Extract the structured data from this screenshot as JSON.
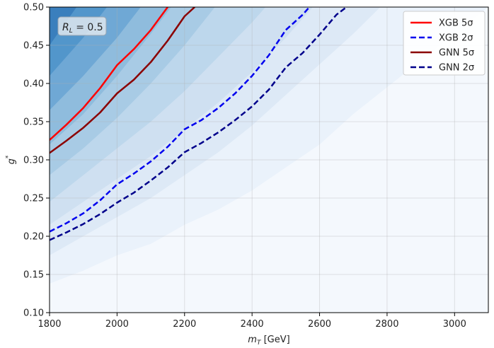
{
  "chart_data": {
    "type": "line",
    "title": "",
    "xlabel": "m_T [GeV]",
    "ylabel": "g*",
    "xlim": [
      1800,
      3100
    ],
    "ylim": [
      0.1,
      0.5
    ],
    "xticks": [
      1800,
      2000,
      2200,
      2400,
      2600,
      2800,
      3000
    ],
    "yticks": [
      0.1,
      0.15,
      0.2,
      0.25,
      0.3,
      0.35,
      0.4,
      0.45,
      0.5
    ],
    "xtick_labels": [
      "1800",
      "2000",
      "2200",
      "2400",
      "2600",
      "2800",
      "3000"
    ],
    "ytick_labels": [
      "0.10",
      "0.15",
      "0.20",
      "0.25",
      "0.30",
      "0.35",
      "0.40",
      "0.45",
      "0.50"
    ],
    "grid": true,
    "legend_position": "top-right",
    "annotation": {
      "text": "R_L = 0.5",
      "position": "top-left"
    },
    "background": {
      "type": "filled-contour",
      "colormap": "Blues",
      "levels": [
        {
          "points": [
            [
              1800,
              0.138
            ],
            [
              1900,
              0.155
            ],
            [
              2000,
              0.175
            ],
            [
              2100,
              0.19
            ],
            [
              2200,
              0.215
            ],
            [
              2300,
              0.235
            ],
            [
              2400,
              0.26
            ],
            [
              2500,
              0.29
            ],
            [
              2600,
              0.32
            ],
            [
              2700,
              0.36
            ],
            [
              2800,
              0.395
            ],
            [
              2900,
              0.43
            ],
            [
              3000,
              0.465
            ],
            [
              3100,
              0.5
            ]
          ],
          "color": "#eaf2fb"
        },
        {
          "points": [
            [
              1800,
              0.175
            ],
            [
              1900,
              0.2
            ],
            [
              2000,
              0.225
            ],
            [
              2100,
              0.25
            ],
            [
              2200,
              0.28
            ],
            [
              2300,
              0.31
            ],
            [
              2400,
              0.345
            ],
            [
              2500,
              0.385
            ],
            [
              2600,
              0.425
            ],
            [
              2700,
              0.465
            ],
            [
              2780,
              0.5
            ]
          ],
          "color": "#dde9f6"
        },
        {
          "points": [
            [
              1800,
              0.215
            ],
            [
              1900,
              0.245
            ],
            [
              2000,
              0.275
            ],
            [
              2100,
              0.305
            ],
            [
              2200,
              0.34
            ],
            [
              2300,
              0.375
            ],
            [
              2400,
              0.415
            ],
            [
              2500,
              0.46
            ],
            [
              2580,
              0.5
            ]
          ],
          "color": "#cfe0f1"
        },
        {
          "points": [
            [
              1800,
              0.245
            ],
            [
              1900,
              0.28
            ],
            [
              2000,
              0.315
            ],
            [
              2100,
              0.35
            ],
            [
              2200,
              0.39
            ],
            [
              2300,
              0.435
            ],
            [
              2400,
              0.48
            ],
            [
              2440,
              0.5
            ]
          ],
          "color": "#bdd7ec"
        },
        {
          "points": [
            [
              1800,
              0.28
            ],
            [
              1900,
              0.315
            ],
            [
              2000,
              0.355
            ],
            [
              2100,
              0.4
            ],
            [
              2200,
              0.45
            ],
            [
              2290,
              0.5
            ]
          ],
          "color": "#a8cbe5"
        },
        {
          "points": [
            [
              1800,
              0.32
            ],
            [
              1900,
              0.36
            ],
            [
              2000,
              0.41
            ],
            [
              2100,
              0.465
            ],
            [
              2160,
              0.5
            ]
          ],
          "color": "#8fbcdd"
        },
        {
          "points": [
            [
              1800,
              0.365
            ],
            [
              1900,
              0.41
            ],
            [
              2000,
              0.46
            ],
            [
              2070,
              0.5
            ]
          ],
          "color": "#6fa8d5"
        },
        {
          "points": [
            [
              1800,
              0.41
            ],
            [
              1900,
              0.46
            ],
            [
              1970,
              0.5
            ]
          ],
          "color": "#5296cb"
        },
        {
          "points": [
            [
              1800,
              0.45
            ],
            [
              1880,
              0.5
            ]
          ],
          "color": "#3a7fbd"
        }
      ]
    },
    "series": [
      {
        "name": "XGB 5σ",
        "color": "#ff0000",
        "style": "solid",
        "width": 2.5,
        "x": [
          1800,
          1850,
          1900,
          1950,
          2000,
          2050,
          2100,
          2150
        ],
        "y": [
          0.326,
          0.346,
          0.368,
          0.394,
          0.424,
          0.445,
          0.47,
          0.5
        ]
      },
      {
        "name": "XGB 2σ",
        "color": "#0000ee",
        "style": "dashed",
        "width": 2.5,
        "x": [
          1800,
          1850,
          1900,
          1950,
          2000,
          2050,
          2100,
          2150,
          2200,
          2250,
          2300,
          2350,
          2400,
          2450,
          2500,
          2550,
          2570
        ],
        "y": [
          0.206,
          0.217,
          0.23,
          0.247,
          0.268,
          0.282,
          0.298,
          0.317,
          0.34,
          0.352,
          0.368,
          0.387,
          0.41,
          0.437,
          0.47,
          0.49,
          0.5
        ]
      },
      {
        "name": "GNN 5σ",
        "color": "#8b0000",
        "style": "solid",
        "width": 2.5,
        "x": [
          1800,
          1850,
          1900,
          1950,
          2000,
          2050,
          2100,
          2150,
          2200,
          2230
        ],
        "y": [
          0.309,
          0.325,
          0.342,
          0.362,
          0.387,
          0.405,
          0.428,
          0.456,
          0.488,
          0.5
        ]
      },
      {
        "name": "GNN 2σ",
        "color": "#00008b",
        "style": "dashed",
        "width": 2.5,
        "x": [
          1800,
          1850,
          1900,
          1950,
          2000,
          2050,
          2100,
          2150,
          2200,
          2250,
          2300,
          2350,
          2400,
          2450,
          2500,
          2550,
          2600,
          2650,
          2680
        ],
        "y": [
          0.195,
          0.205,
          0.216,
          0.229,
          0.244,
          0.257,
          0.273,
          0.29,
          0.31,
          0.322,
          0.336,
          0.352,
          0.37,
          0.392,
          0.421,
          0.44,
          0.464,
          0.49,
          0.5
        ]
      }
    ]
  }
}
